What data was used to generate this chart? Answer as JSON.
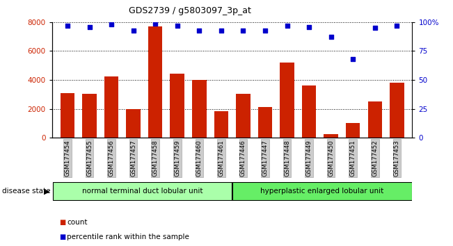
{
  "title": "GDS2739 / g5803097_3p_at",
  "categories": [
    "GSM177454",
    "GSM177455",
    "GSM177456",
    "GSM177457",
    "GSM177458",
    "GSM177459",
    "GSM177460",
    "GSM177461",
    "GSM177446",
    "GSM177447",
    "GSM177448",
    "GSM177449",
    "GSM177450",
    "GSM177451",
    "GSM177452",
    "GSM177453"
  ],
  "counts": [
    3100,
    3050,
    4250,
    2000,
    7700,
    4450,
    4000,
    1850,
    3050,
    2150,
    5200,
    3600,
    250,
    1000,
    2500,
    3800
  ],
  "percentiles": [
    97,
    96,
    98,
    93,
    99,
    97,
    93,
    93,
    93,
    93,
    97,
    96,
    87,
    68,
    95,
    97
  ],
  "group1_label": "normal terminal duct lobular unit",
  "group2_label": "hyperplastic enlarged lobular unit",
  "group1_count": 8,
  "group2_count": 8,
  "ylim_left": [
    0,
    8000
  ],
  "ylim_right": [
    0,
    100
  ],
  "yticks_left": [
    0,
    2000,
    4000,
    6000,
    8000
  ],
  "yticks_right": [
    0,
    25,
    50,
    75,
    100
  ],
  "bar_color": "#cc2200",
  "dot_color": "#0000cc",
  "group1_color": "#aaffaa",
  "group2_color": "#66ee66",
  "tick_bg_color": "#cccccc",
  "legend_count_color": "#cc2200",
  "legend_pct_color": "#0000cc"
}
